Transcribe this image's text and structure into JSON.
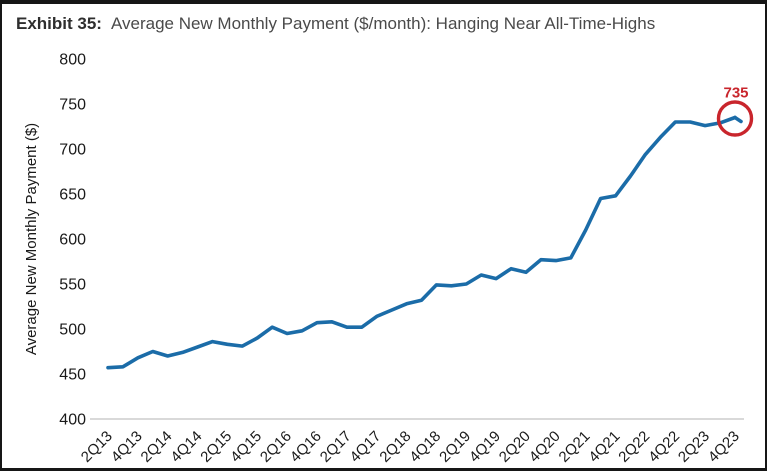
{
  "header": {
    "exhibit_label": "Exhibit 35:",
    "title": "Average New Monthly Payment ($/month): Hanging Near All-Time-Highs"
  },
  "chart_data": {
    "type": "line",
    "title": "Average New Monthly Payment ($/month): Hanging Near All-Time-Highs",
    "x": [
      "2Q13",
      "3Q13",
      "4Q13",
      "1Q14",
      "2Q14",
      "3Q14",
      "4Q14",
      "1Q15",
      "2Q15",
      "3Q15",
      "4Q15",
      "1Q16",
      "2Q16",
      "3Q16",
      "4Q16",
      "1Q17",
      "2Q17",
      "3Q17",
      "4Q17",
      "1Q18",
      "2Q18",
      "3Q18",
      "4Q18",
      "1Q19",
      "2Q19",
      "3Q19",
      "4Q19",
      "1Q20",
      "2Q20",
      "3Q20",
      "4Q20",
      "1Q21",
      "2Q21",
      "3Q21",
      "4Q21",
      "1Q22",
      "2Q22",
      "3Q22",
      "4Q22",
      "1Q23",
      "2Q23",
      "3Q23",
      "4Q23"
    ],
    "values": [
      457,
      458,
      468,
      475,
      470,
      474,
      480,
      486,
      483,
      481,
      490,
      502,
      495,
      498,
      507,
      508,
      502,
      502,
      514,
      521,
      528,
      532,
      549,
      548,
      550,
      560,
      556,
      567,
      563,
      577,
      576,
      579,
      610,
      645,
      648,
      670,
      694,
      713,
      730,
      730,
      726,
      729,
      735
    ],
    "x_tick_labels": [
      "2Q13",
      "4Q13",
      "2Q14",
      "4Q14",
      "2Q15",
      "4Q15",
      "2Q16",
      "4Q16",
      "2Q17",
      "4Q17",
      "2Q18",
      "4Q18",
      "2Q19",
      "4Q19",
      "2Q20",
      "4Q20",
      "2Q21",
      "4Q21",
      "2Q22",
      "4Q22",
      "2Q23",
      "4Q23"
    ],
    "xlabel": "",
    "ylabel": "Average New Monthly Payment ($)",
    "ylim": [
      400,
      800
    ],
    "yticks": [
      400,
      450,
      500,
      550,
      600,
      650,
      700,
      750,
      800
    ],
    "grid": "off",
    "legend": "none",
    "series_color": "#1b6ca8",
    "axis_line_color": "#d9d9d9",
    "annotation": {
      "text": "735",
      "color": "#c9252c",
      "target": "last-point",
      "shape": "circle"
    }
  }
}
